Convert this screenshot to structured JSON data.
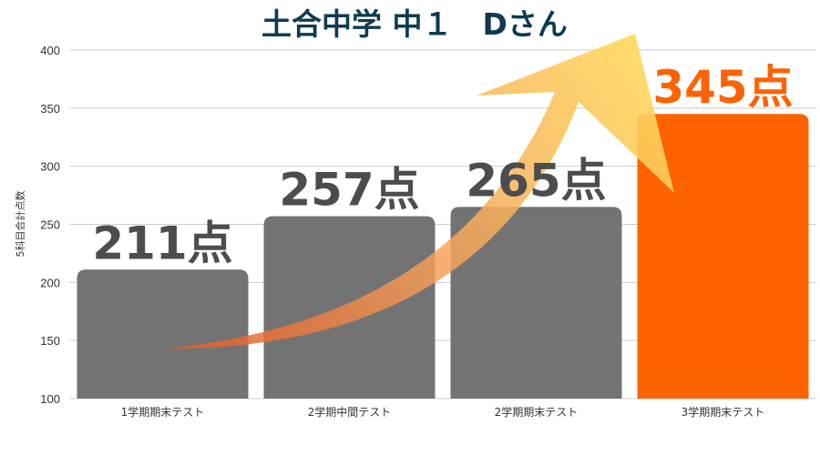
{
  "chart_data": {
    "type": "bar",
    "title": "土合中学 中１　Dさん",
    "ylabel": "5科目合計点数",
    "xlabel": "",
    "ylim": [
      100,
      400
    ],
    "yticks": [
      100,
      150,
      200,
      250,
      300,
      350,
      400
    ],
    "grid": true,
    "categories": [
      "1学期期末テスト",
      "2学期中間テスト",
      "2学期期末テスト",
      "3学期期末テスト"
    ],
    "values": [
      211,
      257,
      265,
      345
    ],
    "data_labels": [
      "211点",
      "257点",
      "265点",
      "345点"
    ],
    "colors": {
      "bar": "#737373",
      "highlight_bar": "#ff6200",
      "label": "#4d4d4d",
      "highlight_label": "#ff6200",
      "arrow_start": "#e05a2a",
      "arrow_end": "#ffd95c",
      "grid": "#cccccc",
      "title": "#0e3b4f"
    },
    "highlight_index": 3,
    "annotation": "upward-trend-arrow"
  }
}
